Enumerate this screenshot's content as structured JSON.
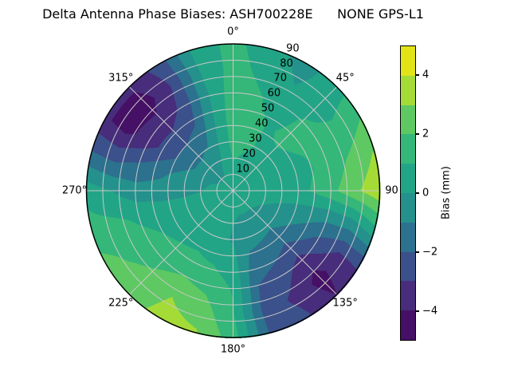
{
  "figure": {
    "title": "Delta Antenna Phase Biases: ASH700228E      NONE GPS-L1",
    "background": "#ffffff"
  },
  "polar_axes": {
    "grid_color": "#c8c8c8",
    "outline_color": "#000000",
    "radial_label_angle_deg": 22.5,
    "angle_ticks": [
      {
        "deg": 0,
        "label": "0°"
      },
      {
        "deg": 45,
        "label": "45°"
      },
      {
        "deg": 90,
        "label": "90"
      },
      {
        "deg": 135,
        "label": "135°"
      },
      {
        "deg": 180,
        "label": "180°"
      },
      {
        "deg": 225,
        "label": "225°"
      },
      {
        "deg": 270,
        "label": "270°"
      },
      {
        "deg": 315,
        "label": "315°"
      }
    ],
    "radial_ticks": [
      {
        "r": 10,
        "label": "10"
      },
      {
        "r": 20,
        "label": "20"
      },
      {
        "r": 30,
        "label": "30"
      },
      {
        "r": 40,
        "label": "40"
      },
      {
        "r": 50,
        "label": "50"
      },
      {
        "r": 60,
        "label": "60"
      },
      {
        "r": 70,
        "label": "70"
      },
      {
        "r": 80,
        "label": "80"
      },
      {
        "r": 90,
        "label": "90"
      }
    ]
  },
  "colorbar": {
    "label": "Bias (mm)",
    "min": -5,
    "max": 5,
    "ticks": [
      {
        "value": 4,
        "label": "4"
      },
      {
        "value": 2,
        "label": "2"
      },
      {
        "value": 0,
        "label": "0"
      },
      {
        "value": -2,
        "label": "−2"
      },
      {
        "value": -4,
        "label": "−4"
      }
    ]
  },
  "chart_data": {
    "type": "heatmap",
    "projection": "polar-contourf",
    "title": "Delta Antenna Phase Biases: ASH700228E      NONE GPS-L1",
    "colorbar_label": "Bias (mm)",
    "colorbar_tick_values": [
      4,
      2,
      0,
      -2,
      -4
    ],
    "azimuth_deg": [
      0,
      15,
      30,
      45,
      60,
      75,
      90,
      105,
      120,
      135,
      150,
      165,
      180,
      195,
      210,
      225,
      240,
      255,
      270,
      285,
      300,
      315,
      330,
      345
    ],
    "radius": [
      0,
      15,
      30,
      45,
      60,
      75,
      90
    ],
    "values": [
      [
        0.3,
        0.9,
        1.4,
        1.6,
        1.6,
        1.4,
        1.3
      ],
      [
        0.3,
        0.7,
        1.2,
        1.3,
        1.1,
        0.7,
        0.4
      ],
      [
        0.3,
        0.5,
        0.9,
        0.9,
        0.5,
        0.0,
        -0.4
      ],
      [
        0.3,
        0.4,
        0.8,
        1.2,
        1.1,
        0.5,
        0.6
      ],
      [
        0.3,
        0.4,
        0.7,
        1.0,
        1.2,
        1.3,
        2.0
      ],
      [
        0.3,
        0.3,
        0.5,
        0.8,
        1.3,
        2.2,
        3.1
      ],
      [
        0.3,
        0.3,
        0.4,
        0.9,
        1.7,
        2.8,
        3.8
      ],
      [
        0.3,
        0.2,
        0.0,
        -0.3,
        -0.6,
        -0.4,
        0.8
      ],
      [
        0.3,
        0.1,
        -0.4,
        -1.2,
        -2.2,
        -3.0,
        -2.8
      ],
      [
        0.3,
        0.0,
        -0.8,
        -2.0,
        -3.4,
        -4.4,
        -4.0
      ],
      [
        0.3,
        0.0,
        -0.7,
        -1.6,
        -2.6,
        -3.2,
        -2.8
      ],
      [
        0.3,
        0.0,
        -0.6,
        -1.3,
        -2.0,
        -2.4,
        -2.2
      ],
      [
        0.3,
        0.1,
        -0.1,
        0.4,
        0.9,
        1.1,
        1.5
      ],
      [
        0.3,
        0.2,
        0.2,
        0.9,
        1.7,
        2.5,
        3.1
      ],
      [
        0.3,
        0.3,
        0.5,
        1.1,
        2.0,
        3.0,
        3.4
      ],
      [
        0.3,
        0.3,
        0.5,
        1.0,
        1.7,
        2.3,
        2.5
      ],
      [
        0.3,
        0.3,
        0.4,
        0.8,
        1.3,
        1.8,
        2.3
      ],
      [
        0.3,
        0.3,
        0.3,
        0.5,
        0.8,
        1.2,
        1.4
      ],
      [
        0.3,
        0.1,
        -0.3,
        -0.6,
        -0.6,
        0.0,
        0.6
      ],
      [
        0.3,
        0.0,
        -0.5,
        -1.2,
        -1.8,
        -2.2,
        -1.9
      ],
      [
        0.3,
        -0.2,
        -1.2,
        -2.4,
        -3.5,
        -4.3,
        -3.9
      ],
      [
        0.3,
        -0.2,
        -1.2,
        -2.4,
        -3.6,
        -4.5,
        -3.8
      ],
      [
        0.3,
        -0.1,
        -0.9,
        -1.9,
        -2.7,
        -2.9,
        -2.5
      ],
      [
        0.3,
        0.3,
        0.2,
        0.0,
        -0.1,
        0.1,
        0.5
      ]
    ],
    "levels": [
      -5,
      -4,
      -3,
      -2,
      -1,
      0,
      1,
      2,
      3,
      4,
      5
    ],
    "band_colors": [
      "#451065",
      "#472d7b",
      "#3b518b",
      "#2c718e",
      "#24918c",
      "#22a586",
      "#35b779",
      "#5ec962",
      "#a5db36",
      "#e2e418"
    ],
    "angle_tick_labels": [
      "0°",
      "45°",
      "90",
      "135°",
      "180°",
      "225°",
      "270°",
      "315°"
    ],
    "radial_tick_labels": [
      "10",
      "20",
      "30",
      "40",
      "50",
      "60",
      "70",
      "80",
      "90"
    ]
  }
}
